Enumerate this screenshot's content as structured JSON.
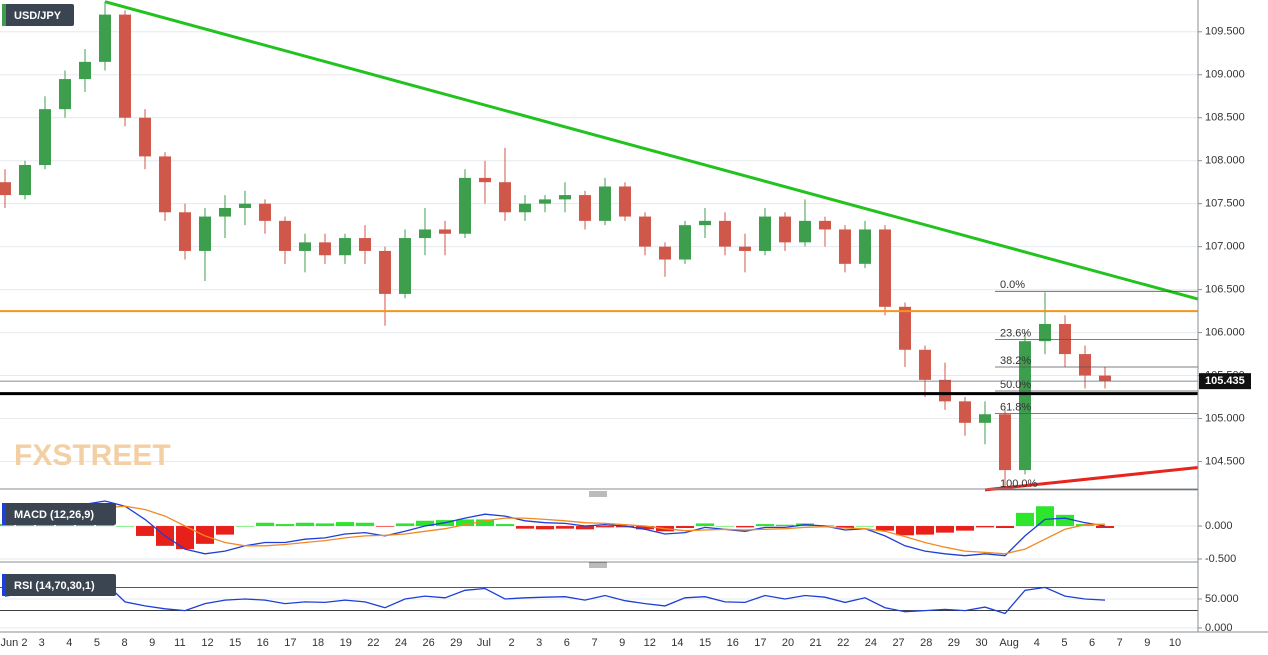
{
  "chart_data": [
    {
      "type": "candlestick",
      "title": "USD/JPY",
      "watermark": "FXSTREET",
      "x_labels": [
        "Jun 2",
        "3",
        "4",
        "5",
        "8",
        "9",
        "11",
        "12",
        "15",
        "16",
        "17",
        "18",
        "19",
        "22",
        "24",
        "26",
        "29",
        "Jul",
        "2",
        "3",
        "6",
        "7",
        "9",
        "12",
        "14",
        "15",
        "16",
        "17",
        "20",
        "21",
        "22",
        "24",
        "27",
        "28",
        "29",
        "30",
        "Aug",
        "4",
        "5",
        "6",
        "7",
        "9",
        "10"
      ],
      "up_color": "#3d9f4e",
      "down_color": "#d0584a",
      "ohlc": [
        [
          107.75,
          107.9,
          107.45,
          107.6
        ],
        [
          107.6,
          108.0,
          107.55,
          107.95
        ],
        [
          107.95,
          108.75,
          107.9,
          108.6
        ],
        [
          108.6,
          109.05,
          108.5,
          108.95
        ],
        [
          108.95,
          109.3,
          108.8,
          109.15
        ],
        [
          109.15,
          109.85,
          109.05,
          109.7
        ],
        [
          109.7,
          109.75,
          108.4,
          108.5
        ],
        [
          108.5,
          108.6,
          107.9,
          108.05
        ],
        [
          108.05,
          108.1,
          107.3,
          107.4
        ],
        [
          107.4,
          107.5,
          106.85,
          106.95
        ],
        [
          106.95,
          107.45,
          106.6,
          107.35
        ],
        [
          107.35,
          107.6,
          107.1,
          107.45
        ],
        [
          107.45,
          107.65,
          107.25,
          107.5
        ],
        [
          107.5,
          107.55,
          107.15,
          107.3
        ],
        [
          107.3,
          107.35,
          106.8,
          106.95
        ],
        [
          106.95,
          107.15,
          106.7,
          107.05
        ],
        [
          107.05,
          107.15,
          106.8,
          106.9
        ],
        [
          106.9,
          107.15,
          106.8,
          107.1
        ],
        [
          107.1,
          107.25,
          106.8,
          106.95
        ],
        [
          106.95,
          107.0,
          106.08,
          106.45
        ],
        [
          106.45,
          107.2,
          106.4,
          107.1
        ],
        [
          107.1,
          107.45,
          106.9,
          107.2
        ],
        [
          107.2,
          107.3,
          106.9,
          107.15
        ],
        [
          107.15,
          107.9,
          107.1,
          107.8
        ],
        [
          107.8,
          108.0,
          107.5,
          107.75
        ],
        [
          107.75,
          108.15,
          107.3,
          107.4
        ],
        [
          107.4,
          107.6,
          107.3,
          107.5
        ],
        [
          107.5,
          107.6,
          107.4,
          107.55
        ],
        [
          107.55,
          107.75,
          107.4,
          107.6
        ],
        [
          107.6,
          107.65,
          107.2,
          107.3
        ],
        [
          107.3,
          107.8,
          107.25,
          107.7
        ],
        [
          107.7,
          107.75,
          107.3,
          107.35
        ],
        [
          107.35,
          107.4,
          106.9,
          107.0
        ],
        [
          107.0,
          107.05,
          106.65,
          106.85
        ],
        [
          106.85,
          107.3,
          106.8,
          107.25
        ],
        [
          107.25,
          107.45,
          107.1,
          107.3
        ],
        [
          107.3,
          107.4,
          106.9,
          107.0
        ],
        [
          107.0,
          107.15,
          106.7,
          106.95
        ],
        [
          106.95,
          107.45,
          106.9,
          107.35
        ],
        [
          107.35,
          107.4,
          106.95,
          107.05
        ],
        [
          107.05,
          107.55,
          107.0,
          107.3
        ],
        [
          107.3,
          107.35,
          107.0,
          107.2
        ],
        [
          107.2,
          107.25,
          106.7,
          106.8
        ],
        [
          106.8,
          107.3,
          106.75,
          107.2
        ],
        [
          107.2,
          107.25,
          106.2,
          106.3
        ],
        [
          106.3,
          106.35,
          105.6,
          105.8
        ],
        [
          105.8,
          105.85,
          105.25,
          105.45
        ],
        [
          105.45,
          105.65,
          105.1,
          105.2
        ],
        [
          105.2,
          105.25,
          104.8,
          104.95
        ],
        [
          104.95,
          105.2,
          104.7,
          105.05
        ],
        [
          105.05,
          105.1,
          104.2,
          104.4
        ],
        [
          104.4,
          106.0,
          104.35,
          105.9
        ],
        [
          105.9,
          106.47,
          105.75,
          106.1
        ],
        [
          106.1,
          106.2,
          105.6,
          105.75
        ],
        [
          105.75,
          105.85,
          105.35,
          105.5
        ],
        [
          105.5,
          105.6,
          105.35,
          105.435
        ]
      ],
      "ylim": [
        104.18,
        109.87
      ],
      "yticks": [
        {
          "value": 104.5,
          "label": "104.500"
        },
        {
          "value": 105,
          "label": "105.000"
        },
        {
          "value": 105.5,
          "label": "105.500"
        },
        {
          "value": 106,
          "label": "106.000"
        },
        {
          "value": 106.5,
          "label": "106.500"
        },
        {
          "value": 107,
          "label": "107.000"
        },
        {
          "value": 107.5,
          "label": "107.500"
        },
        {
          "value": 108,
          "label": "108.000"
        },
        {
          "value": 108.5,
          "label": "108.500"
        },
        {
          "value": 109,
          "label": "109.000"
        },
        {
          "value": 109.5,
          "label": "109.500"
        }
      ],
      "last_price": 105.435,
      "levels": [
        {
          "value": 106.25,
          "color": "#f7941d"
        },
        {
          "value": 105.29,
          "color": "#000000"
        }
      ],
      "trendlines": [
        {
          "color": "#22c21f",
          "start": 109.85,
          "end": 106.39
        },
        {
          "color": "#e8251c",
          "start": 104.17,
          "end": 104.43
        }
      ],
      "fibonacci": [
        {
          "label": "0.0%",
          "value": 106.48
        },
        {
          "label": "23.6%",
          "value": 105.92
        },
        {
          "label": "38.2%",
          "value": 105.6
        },
        {
          "label": "50.0%",
          "value": 105.32
        },
        {
          "label": "61.8%",
          "value": 105.06
        },
        {
          "label": "100.0%",
          "value": 104.17
        }
      ]
    },
    {
      "type": "macd",
      "title": "MACD (12,26,9)",
      "ylim": [
        -0.545,
        0.44
      ],
      "yticks": [
        {
          "value": -0.5,
          "label": "-0.500"
        },
        {
          "value": 0,
          "label": "0.000"
        }
      ],
      "series": [
        {
          "name": "MACD",
          "color": "#1f3fd6",
          "values": [
            0.05,
            0.1,
            0.2,
            0.28,
            0.33,
            0.38,
            0.3,
            0.1,
            -0.15,
            -0.35,
            -0.42,
            -0.38,
            -0.3,
            -0.25,
            -0.25,
            -0.2,
            -0.18,
            -0.12,
            -0.1,
            -0.15,
            -0.08,
            0.0,
            0.05,
            0.12,
            0.18,
            0.15,
            0.08,
            0.05,
            0.04,
            0.0,
            0.02,
            0.0,
            -0.05,
            -0.12,
            -0.1,
            -0.02,
            -0.05,
            -0.08,
            -0.02,
            -0.02,
            0.02,
            0.0,
            -0.06,
            -0.04,
            -0.15,
            -0.3,
            -0.38,
            -0.42,
            -0.45,
            -0.42,
            -0.45,
            -0.15,
            0.1,
            0.12,
            0.05,
            0.0
          ]
        },
        {
          "name": "Signal",
          "color": "#f08a24",
          "values": [
            0.02,
            0.05,
            0.1,
            0.16,
            0.22,
            0.28,
            0.3,
            0.25,
            0.15,
            0.0,
            -0.15,
            -0.25,
            -0.3,
            -0.3,
            -0.28,
            -0.25,
            -0.22,
            -0.18,
            -0.15,
            -0.14,
            -0.12,
            -0.08,
            -0.04,
            0.02,
            0.08,
            0.12,
            0.12,
            0.1,
            0.08,
            0.05,
            0.04,
            0.02,
            0.0,
            -0.04,
            -0.07,
            -0.06,
            -0.05,
            -0.06,
            -0.05,
            -0.04,
            -0.02,
            -0.01,
            -0.03,
            -0.04,
            -0.08,
            -0.16,
            -0.25,
            -0.32,
            -0.38,
            -0.4,
            -0.42,
            -0.35,
            -0.2,
            -0.05,
            0.02,
            0.03
          ]
        }
      ],
      "histogram": {
        "up_color": "#2ee52e",
        "down_color": "#e8201a",
        "values": [
          0.03,
          0.05,
          0.1,
          0.12,
          0.11,
          0.1,
          0.0,
          -0.15,
          -0.3,
          -0.35,
          -0.27,
          -0.13,
          0.0,
          0.05,
          0.03,
          0.05,
          0.04,
          0.06,
          0.05,
          -0.01,
          0.04,
          0.08,
          0.09,
          0.1,
          0.1,
          0.03,
          -0.04,
          -0.05,
          -0.04,
          -0.05,
          -0.02,
          -0.02,
          -0.05,
          -0.08,
          -0.03,
          0.04,
          0.0,
          -0.02,
          0.03,
          0.02,
          0.04,
          0.01,
          -0.03,
          0.0,
          -0.07,
          -0.14,
          -0.13,
          -0.1,
          -0.07,
          -0.02,
          -0.03,
          0.2,
          0.3,
          0.17,
          0.03,
          -0.03
        ]
      }
    },
    {
      "type": "rsi",
      "title": "RSI (14,70,30,1)",
      "ylim": [
        -7,
        100
      ],
      "yticks": [
        {
          "value": 0,
          "label": "0.000"
        },
        {
          "value": 50,
          "label": "50.000"
        }
      ],
      "levels": [
        70,
        30
      ],
      "series": [
        {
          "name": "RSI",
          "color": "#1c3fd8",
          "values": [
            55,
            60,
            70,
            72,
            75,
            78,
            45,
            38,
            33,
            30,
            42,
            48,
            50,
            48,
            42,
            45,
            44,
            48,
            45,
            35,
            50,
            55,
            52,
            65,
            68,
            50,
            52,
            53,
            54,
            48,
            56,
            47,
            42,
            38,
            52,
            54,
            45,
            44,
            56,
            50,
            56,
            53,
            44,
            52,
            35,
            28,
            30,
            32,
            30,
            36,
            25,
            65,
            70,
            55,
            50,
            48
          ]
        }
      ]
    }
  ]
}
